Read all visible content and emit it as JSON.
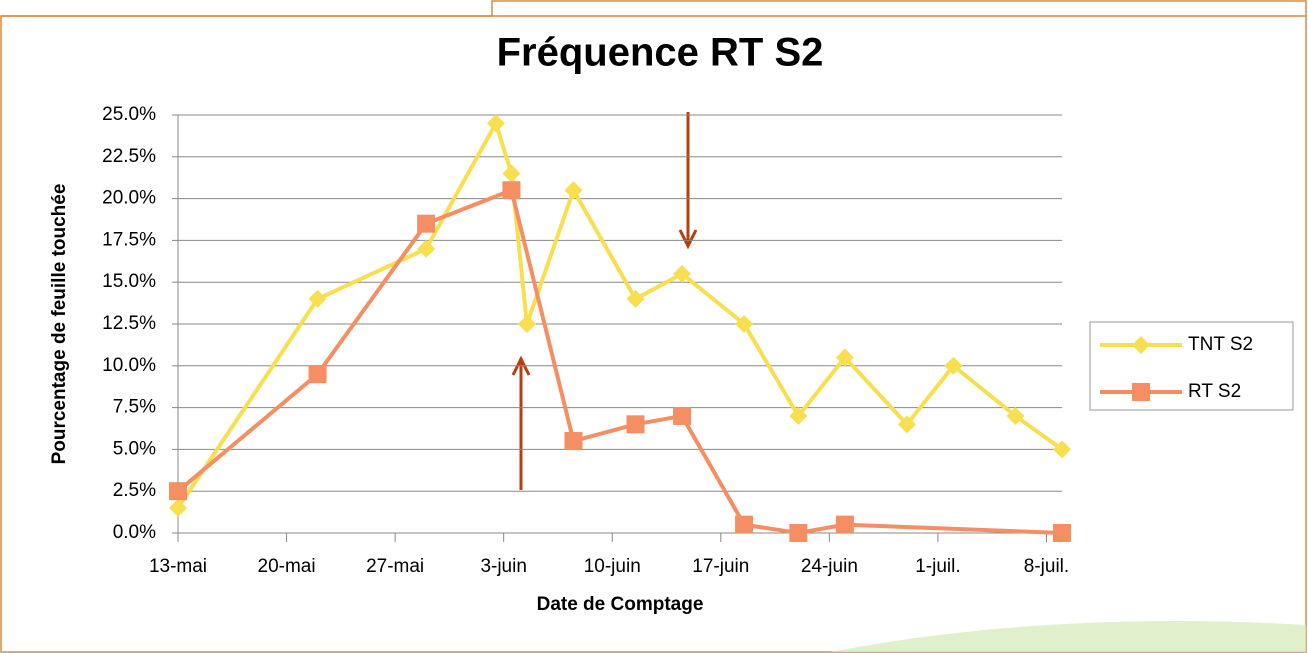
{
  "chart_data": {
    "type": "line",
    "title": "Fréquence RT S2",
    "x_label": "Date de Comptage",
    "y_label": "Pourcentage de feuille touchée",
    "xlim": [
      0,
      57
    ],
    "xticks": [
      {
        "value": 0,
        "label": "13-mai"
      },
      {
        "value": 7,
        "label": "20-mai"
      },
      {
        "value": 14,
        "label": "27-mai"
      },
      {
        "value": 21,
        "label": "3-juin"
      },
      {
        "value": 28,
        "label": "10-juin"
      },
      {
        "value": 35,
        "label": "17-juin"
      },
      {
        "value": 42,
        "label": "24-juin"
      },
      {
        "value": 49,
        "label": "1-juil."
      },
      {
        "value": 56,
        "label": "8-juil."
      }
    ],
    "ylim": [
      0,
      25
    ],
    "yticks": [
      {
        "value": 0,
        "label": "0.0%"
      },
      {
        "value": 2.5,
        "label": "2.5%"
      },
      {
        "value": 5,
        "label": "5.0%"
      },
      {
        "value": 7.5,
        "label": "7.5%"
      },
      {
        "value": 10,
        "label": "10.0%"
      },
      {
        "value": 12.5,
        "label": "12.5%"
      },
      {
        "value": 15,
        "label": "15.0%"
      },
      {
        "value": 17.5,
        "label": "17.5%"
      },
      {
        "value": 20,
        "label": "20.0%"
      },
      {
        "value": 22.5,
        "label": "22.5%"
      },
      {
        "value": 25,
        "label": "25.0%"
      }
    ],
    "grid": true,
    "legend": "right",
    "series": [
      {
        "name": "TNT S2",
        "color": "#f7df4f",
        "marker": "diamond",
        "x": [
          0,
          9,
          16,
          20.5,
          21.5,
          22.5,
          25.5,
          29.5,
          32.5,
          36.5,
          40,
          43,
          47,
          50,
          54,
          57
        ],
        "values": [
          1.5,
          14,
          17,
          24.5,
          21.5,
          12.5,
          20.5,
          14,
          15.5,
          12.5,
          7,
          10.5,
          6.5,
          10,
          7,
          5
        ]
      },
      {
        "name": "RT S2",
        "color": "#f58e63",
        "marker": "square",
        "x": [
          0,
          9,
          16,
          21.5,
          25.5,
          29.5,
          32.5,
          36.5,
          40,
          43,
          57
        ],
        "values": [
          2.5,
          9.5,
          18.5,
          20.5,
          5.5,
          6.5,
          7,
          0.5,
          0,
          0.5,
          0
        ]
      }
    ]
  }
}
